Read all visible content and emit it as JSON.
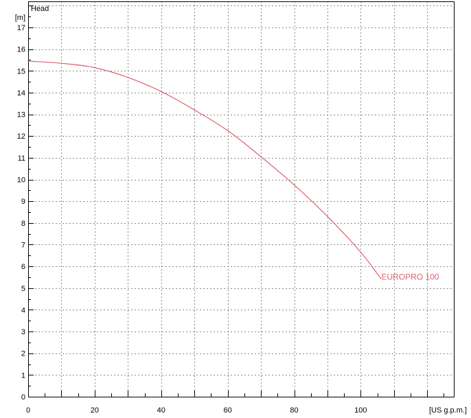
{
  "chart_data": {
    "type": "line",
    "title": "",
    "ylabel": "Head",
    "y_unit": "[m]",
    "x_unit": "[US g.p.m.]",
    "xlim": [
      0,
      128
    ],
    "ylim": [
      0,
      18.2
    ],
    "x_ticks": [
      0,
      20,
      40,
      60,
      80,
      100
    ],
    "y_ticks": [
      0,
      1,
      2,
      3,
      4,
      5,
      6,
      7,
      8,
      9,
      10,
      11,
      12,
      13,
      14,
      15,
      16,
      17
    ],
    "x_minor_step": 5,
    "y_minor_step": 0.5,
    "grid": true,
    "grid_style": "dotted",
    "series": [
      {
        "name": "EUROPRO 100",
        "color": "#e06070",
        "x": [
          0,
          10,
          20,
          30,
          40,
          50,
          60,
          70,
          80,
          90,
          100,
          106
        ],
        "y": [
          15.45,
          15.35,
          15.15,
          14.7,
          14.05,
          13.2,
          12.25,
          11.05,
          9.75,
          8.3,
          6.65,
          5.45
        ]
      }
    ]
  }
}
